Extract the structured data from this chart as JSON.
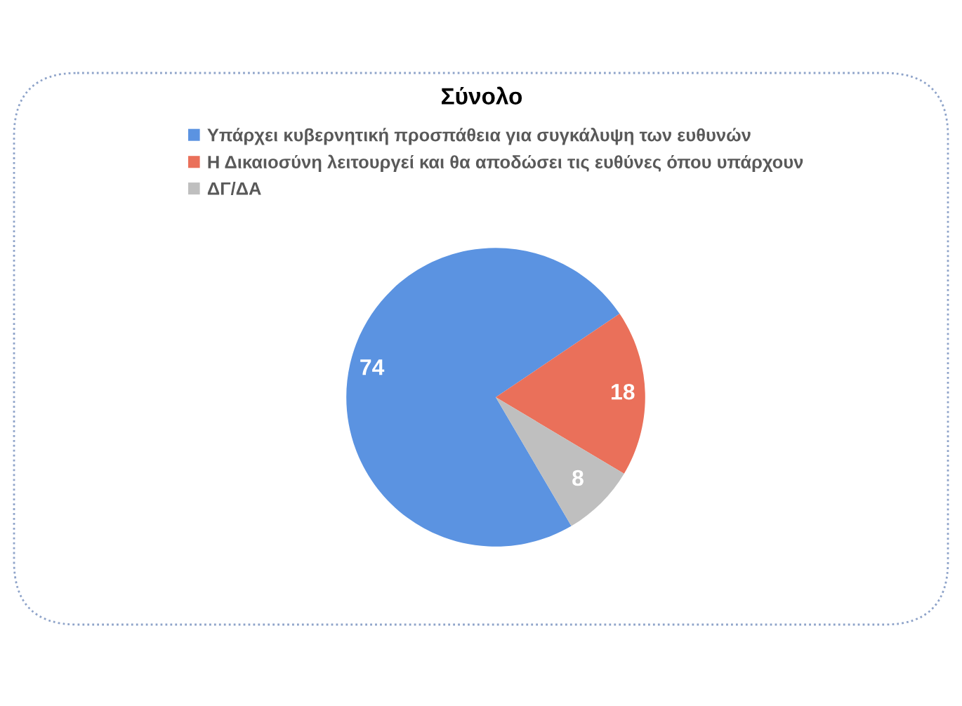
{
  "chart_data": {
    "type": "pie",
    "title": "Σύνολο",
    "categories": [
      "Υπάρχει κυβερνητική προσπάθεια για συγκάλυψη των ευθυνών",
      "Η Δικαιοσύνη λειτουργεί και θα αποδώσει τις ευθύνες όπου υπάρχουν",
      "ΔΓ/ΔΑ"
    ],
    "values": [
      74,
      18,
      8
    ],
    "colors": [
      "#5b93e1",
      "#ea705a",
      "#bfbfbf"
    ],
    "legend": "top",
    "data_labels": true
  }
}
